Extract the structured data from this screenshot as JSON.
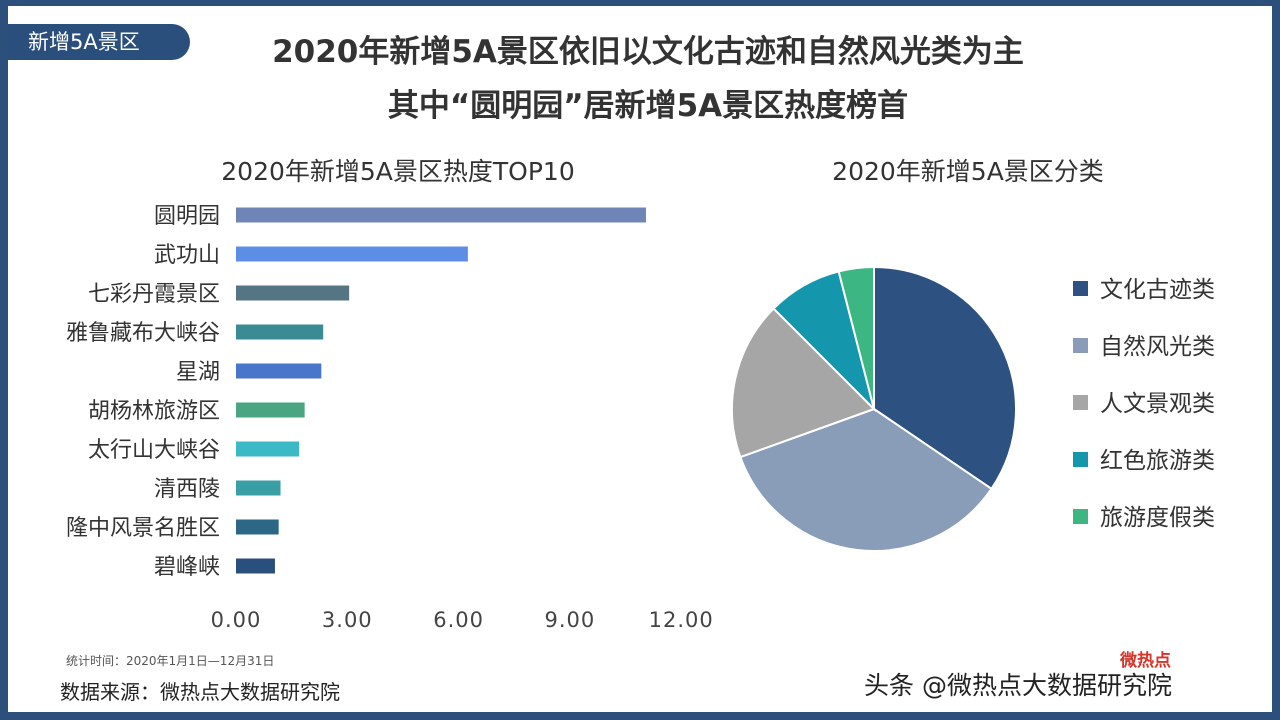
{
  "tag": "新增5A景区",
  "headline": {
    "line1": "2020年新增5A景区依旧以文化古迹和自然风光类为主",
    "line2": "其中“圆明园”居新增5A景区热度榜首"
  },
  "footer": {
    "note": "统计时间：2020年1月1日—12月31日",
    "source": "数据来源：微热点大数据研究院",
    "watermark": "头条 @微热点大数据研究院",
    "logo_text": "微热点"
  },
  "chart_data": [
    {
      "type": "bar",
      "orientation": "horizontal",
      "title": "2020年新增5A景区热度TOP10",
      "categories": [
        "圆明园",
        "武功山",
        "七彩丹霞景区",
        "雅鲁藏布大峡谷",
        "星湖",
        "胡杨林旅游区",
        "太行山大峡谷",
        "清西陵",
        "隆中风景名胜区",
        "碧峰峡"
      ],
      "values": [
        11.05,
        6.25,
        3.05,
        2.35,
        2.3,
        1.85,
        1.7,
        1.2,
        1.15,
        1.05
      ],
      "colors": [
        "#6f85b8",
        "#5d8ee6",
        "#567582",
        "#3a8b93",
        "#4976c8",
        "#4aa583",
        "#3bbac6",
        "#3a9ea5",
        "#2c6886",
        "#2b4f7c"
      ],
      "xticks": [
        "0.00",
        "3.00",
        "6.00",
        "9.00",
        "12.00"
      ],
      "xlim": [
        0,
        12
      ],
      "grid": false
    },
    {
      "type": "pie",
      "title": "2020年新增5A景区分类",
      "labels": [
        "文化古迹类",
        "自然风光类",
        "人文景观类",
        "红色旅游类",
        "旅游度假类"
      ],
      "values": [
        34.5,
        35.0,
        18.0,
        8.5,
        4.0
      ],
      "colors": [
        "#2d5282",
        "#8a9db8",
        "#a6a6a6",
        "#1497ad",
        "#3cb784"
      ],
      "legend": "right"
    }
  ]
}
